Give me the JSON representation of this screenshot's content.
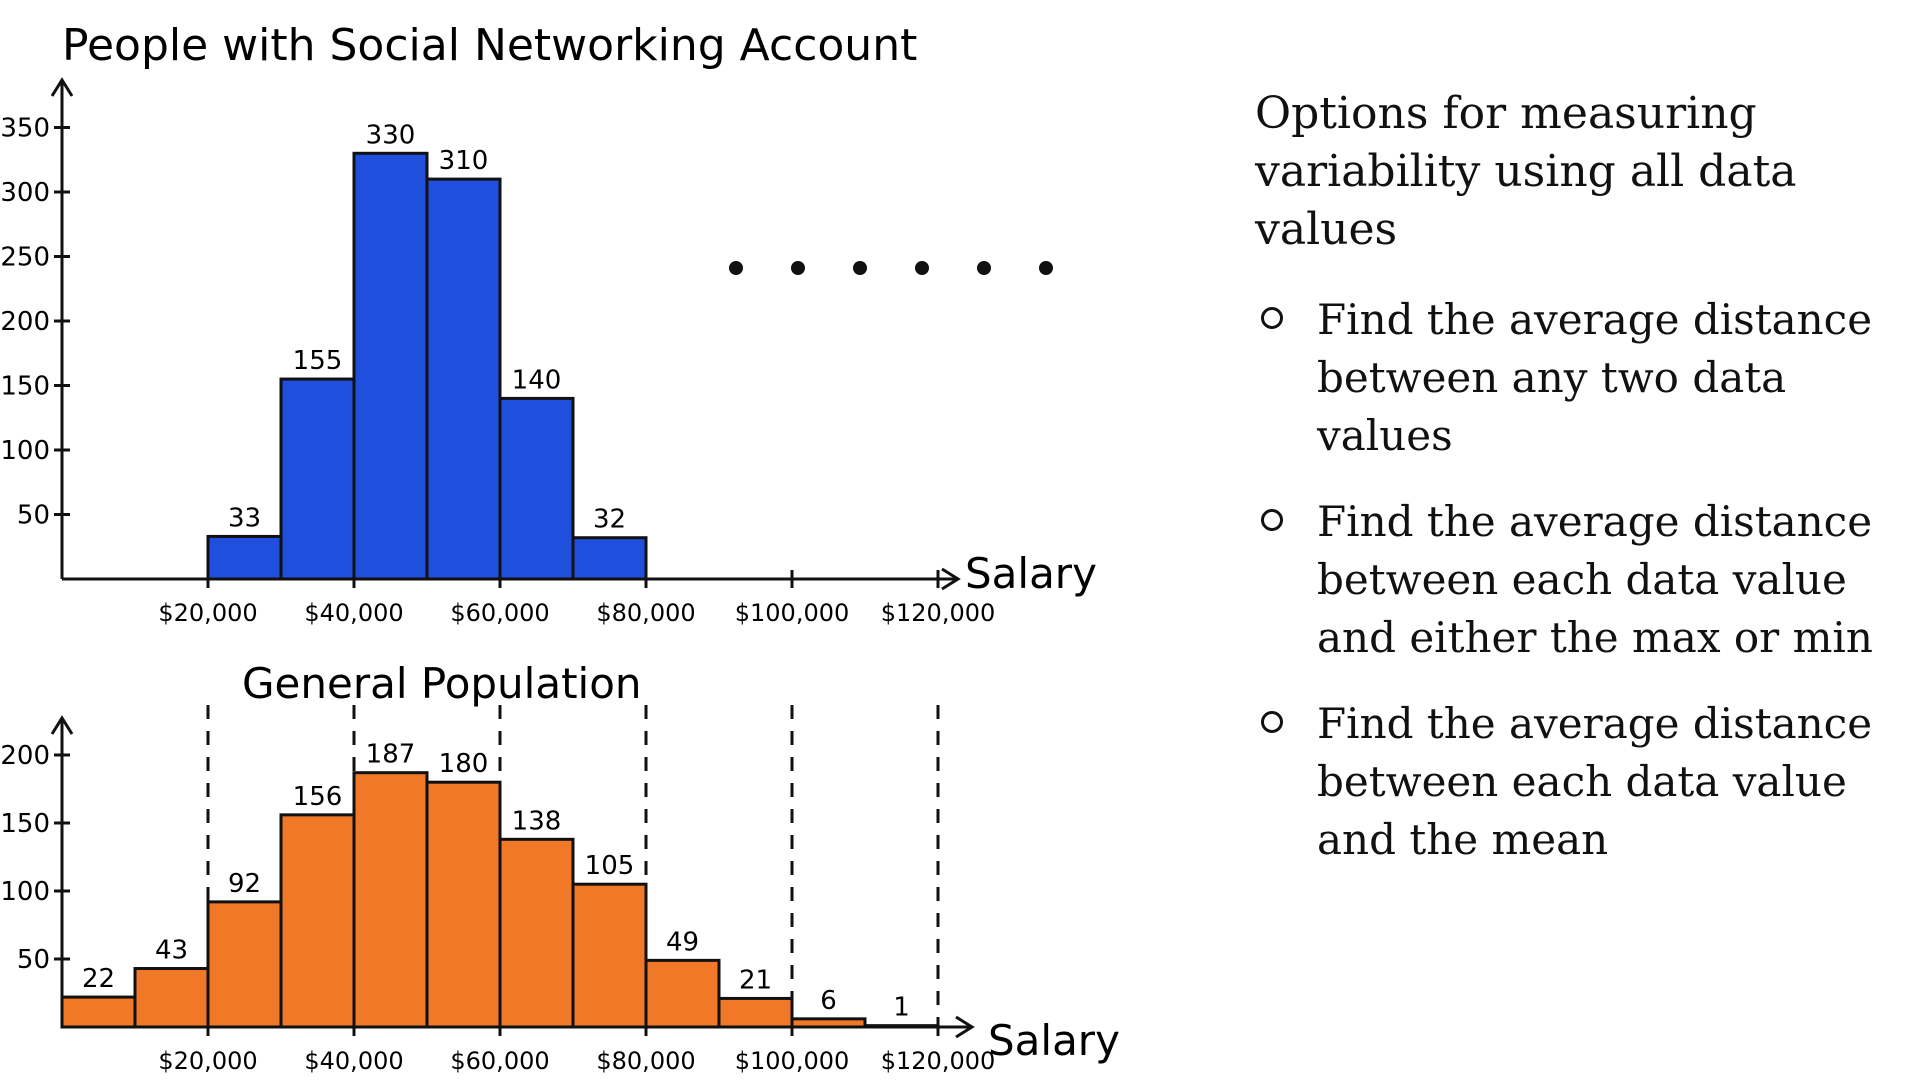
{
  "chart_data": [
    {
      "type": "bar",
      "title": "People with Social Networking Account",
      "xlabel": "Salary",
      "ylabel": "",
      "color": "#1f4fdc",
      "y_ticks": [
        "50",
        "100",
        "150",
        "200",
        "250",
        "300",
        "350"
      ],
      "x_ticks": [
        "$20,000",
        "$40,000",
        "$60,000",
        "$80,000",
        "$100,000",
        "$120,000"
      ],
      "bins": [
        {
          "x0": 20000,
          "x1": 30000,
          "value": 33,
          "label": "33"
        },
        {
          "x0": 30000,
          "x1": 40000,
          "value": 155,
          "label": "155"
        },
        {
          "x0": 40000,
          "x1": 50000,
          "value": 330,
          "label": "330"
        },
        {
          "x0": 50000,
          "x1": 60000,
          "value": 310,
          "label": "310"
        },
        {
          "x0": 60000,
          "x1": 70000,
          "value": 140,
          "label": "140"
        },
        {
          "x0": 70000,
          "x1": 80000,
          "value": 32,
          "label": "32"
        }
      ],
      "ylim": [
        0,
        350
      ],
      "xlim": [
        0,
        120000
      ]
    },
    {
      "type": "bar",
      "title": "General Population",
      "xlabel": "Salary",
      "ylabel": "",
      "color": "#f07826",
      "y_ticks": [
        "50",
        "100",
        "150",
        "200"
      ],
      "x_ticks": [
        "$20,000",
        "$40,000",
        "$60,000",
        "$80,000",
        "$100,000",
        "$120,000"
      ],
      "bins": [
        {
          "x0": 0,
          "x1": 10000,
          "value": 22,
          "label": "22"
        },
        {
          "x0": 10000,
          "x1": 20000,
          "value": 43,
          "label": "43"
        },
        {
          "x0": 20000,
          "x1": 30000,
          "value": 92,
          "label": "92"
        },
        {
          "x0": 30000,
          "x1": 40000,
          "value": 156,
          "label": "156"
        },
        {
          "x0": 40000,
          "x1": 50000,
          "value": 187,
          "label": "187"
        },
        {
          "x0": 50000,
          "x1": 60000,
          "value": 180,
          "label": "180"
        },
        {
          "x0": 60000,
          "x1": 70000,
          "value": 138,
          "label": "138"
        },
        {
          "x0": 70000,
          "x1": 80000,
          "value": 105,
          "label": "105"
        },
        {
          "x0": 80000,
          "x1": 90000,
          "value": 49,
          "label": "49"
        },
        {
          "x0": 90000,
          "x1": 100000,
          "value": 21,
          "label": "21"
        },
        {
          "x0": 100000,
          "x1": 110000,
          "value": 6,
          "label": "6"
        },
        {
          "x0": 110000,
          "x1": 120000,
          "value": 1,
          "label": "1"
        }
      ],
      "ylim": [
        0,
        200
      ],
      "xlim": [
        0,
        120000
      ],
      "dashed_guides_at": [
        20000,
        40000,
        60000,
        80000,
        100000,
        120000
      ]
    }
  ],
  "dots_count": 6,
  "notes": {
    "title": "Options for measuring variability using all data values",
    "options": [
      "Find the average distance between any two data values",
      "Find the average distance between each data value and either the max or min",
      "Find the average distance between each data value and the mean"
    ]
  }
}
